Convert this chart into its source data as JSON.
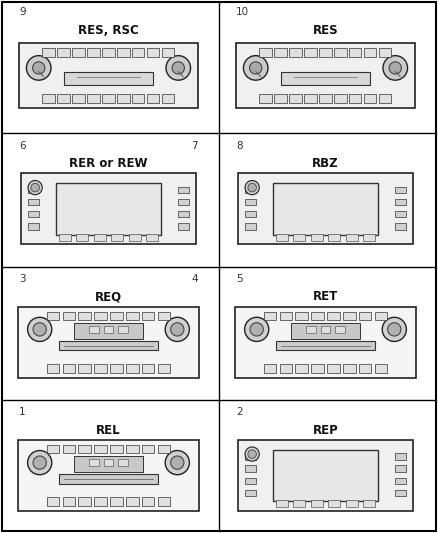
{
  "title": "",
  "background_color": "#ffffff",
  "border_color": "#000000",
  "grid_rows": 4,
  "grid_cols": 2,
  "cells": [
    {
      "row": 0,
      "col": 0,
      "label": "REL",
      "number": "1",
      "number_pos": "bottom_left",
      "type": "cd_radio"
    },
    {
      "row": 0,
      "col": 1,
      "label": "REP",
      "number": "2",
      "number_pos": "bottom_left",
      "type": "nav_screen"
    },
    {
      "row": 1,
      "col": 0,
      "label": "REQ",
      "number_left": "3",
      "number_right": "4",
      "number_pos": "both",
      "type": "cd_radio2"
    },
    {
      "row": 1,
      "col": 1,
      "label": "RET",
      "number": "5",
      "number_pos": "bottom_left",
      "type": "cd_radio3"
    },
    {
      "row": 2,
      "col": 0,
      "label": "RER or REW",
      "number_left": "6",
      "number_right": "7",
      "number_pos": "both",
      "type": "nav_screen2"
    },
    {
      "row": 2,
      "col": 1,
      "label": "RBZ",
      "number": "8",
      "number_pos": "bottom_left",
      "type": "nav_screen3"
    },
    {
      "row": 3,
      "col": 0,
      "label": "RES, RSC",
      "number": "9",
      "number_pos": "bottom_left",
      "type": "tape_radio"
    },
    {
      "row": 3,
      "col": 1,
      "label": "RES",
      "number": "10",
      "number_pos": "bottom_left",
      "type": "tape_radio2"
    }
  ]
}
